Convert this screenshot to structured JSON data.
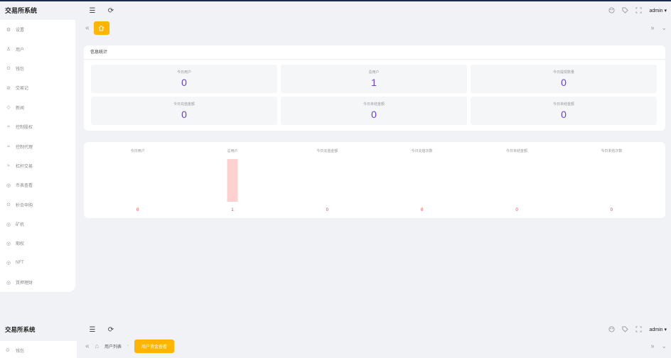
{
  "app": {
    "title": "交易所系统",
    "user": "admin"
  },
  "header": {
    "menu_toggle_icon": "☰",
    "refresh_icon": "⟳"
  },
  "sidebar": {
    "items": [
      {
        "label": "设置",
        "icon": "gear-icon"
      },
      {
        "label": "用户",
        "icon": "user-icon"
      },
      {
        "label": "钱包",
        "icon": "wallet-icon"
      },
      {
        "label": "交易记",
        "icon": "check-circle-icon"
      },
      {
        "label": "新闻",
        "icon": "tag-icon"
      },
      {
        "label": "控制股权",
        "icon": "handshake-icon"
      },
      {
        "label": "控制代理",
        "icon": "handshake-icon"
      },
      {
        "label": "杠杆交易",
        "icon": "handshake-icon"
      },
      {
        "label": "币表查看",
        "icon": "coin-icon"
      },
      {
        "label": "秒合申购",
        "icon": "clock-icon"
      },
      {
        "label": "矿机",
        "icon": "coin-icon"
      },
      {
        "label": "期权",
        "icon": "coin-icon"
      },
      {
        "label": "NFT",
        "icon": "coin-icon"
      },
      {
        "label": "質押理财",
        "icon": "coin-icon"
      }
    ]
  },
  "stats": {
    "title": "信息统计",
    "cards": [
      {
        "label": "今日用户",
        "value": "0"
      },
      {
        "label": "总用户",
        "value": "1"
      },
      {
        "label": "今日提现数量",
        "value": "0"
      },
      {
        "label": "今日充值金额",
        "value": "0"
      },
      {
        "label": "今日未结金额",
        "value": "0"
      },
      {
        "label": "今日未结金额",
        "value": "0"
      }
    ]
  },
  "chart_data": {
    "type": "bar",
    "categories": [
      "今日用户",
      "总用户",
      "今日充值金额",
      "今日充值次数",
      "今日未结金额",
      "今日未结次数"
    ],
    "values": [
      0,
      1,
      0,
      0,
      0,
      0
    ],
    "value_labels": [
      "0",
      "1",
      "0",
      "0",
      "0",
      "0"
    ],
    "ylim": [
      0,
      1
    ],
    "bar_color": "#ffd0d0",
    "label_color": "#e53935"
  },
  "frame2": {
    "title": "交易所系统",
    "menu_item": {
      "label": "钱包",
      "icon": "wallet-icon"
    },
    "user": "admin",
    "breadcrumb": {
      "item": "用户列表",
      "active_tab": "用户资金查看"
    }
  },
  "colors": {
    "accent": "#ffb400",
    "value": "#6a3fd6"
  }
}
